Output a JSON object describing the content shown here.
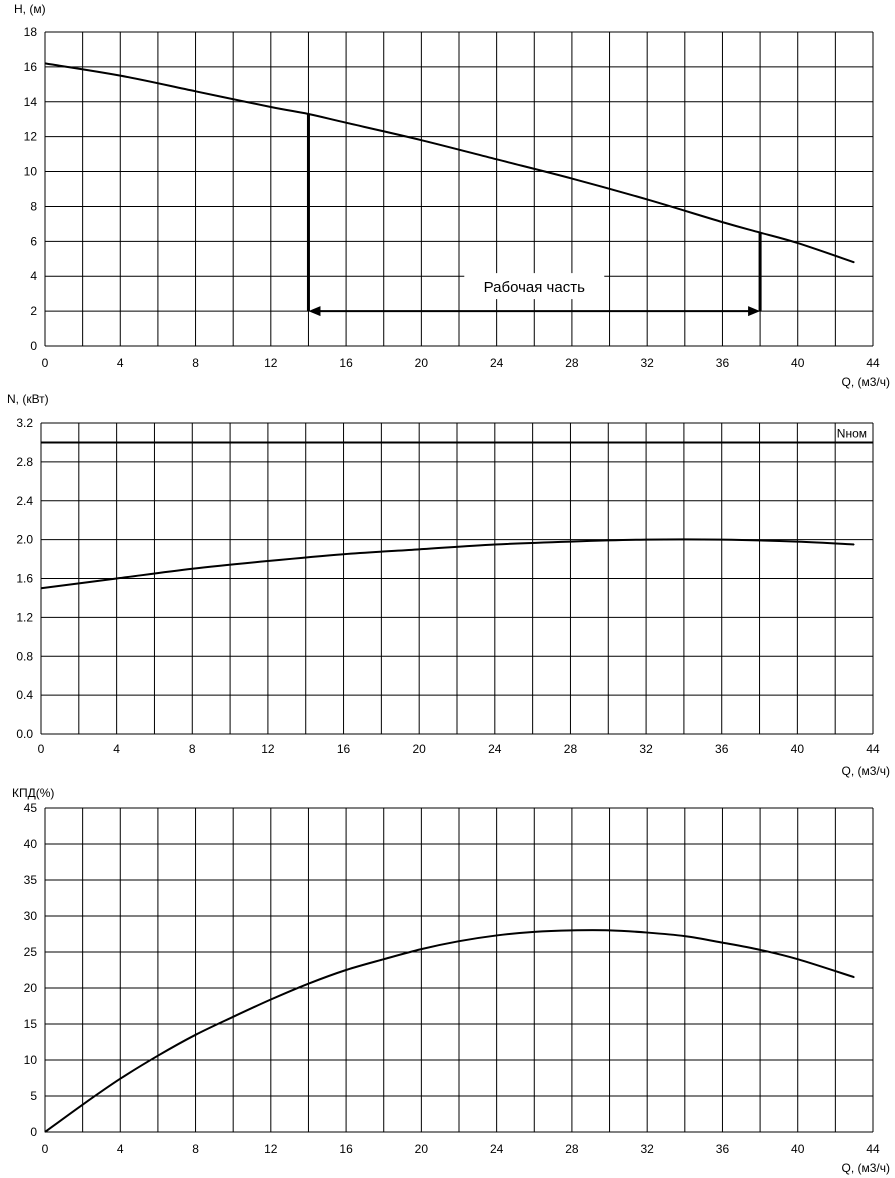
{
  "x_axis": {
    "label": "Q, (м3/ч)",
    "ticks": [
      0,
      4,
      8,
      12,
      16,
      20,
      24,
      28,
      32,
      36,
      40,
      44
    ],
    "range": [
      0,
      44
    ],
    "grid_step": 2
  },
  "chart_data": [
    {
      "type": "line",
      "ylabel": "H, (м)",
      "xlabel": "Q, (м3/ч)",
      "ylim": [
        0,
        18
      ],
      "yticks": [
        "0",
        "2",
        "4",
        "6",
        "8",
        "10",
        "12",
        "14",
        "16",
        "18"
      ],
      "grid": true,
      "series": [
        {
          "x": [
            0,
            4,
            8,
            12,
            14,
            16,
            20,
            24,
            28,
            32,
            36,
            38,
            40,
            43
          ],
          "y": [
            16.2,
            15.5,
            14.6,
            13.7,
            13.3,
            12.8,
            11.8,
            10.7,
            9.6,
            8.4,
            7.1,
            6.5,
            5.9,
            4.8
          ]
        }
      ],
      "annotations": [
        {
          "text": "Рабочая часть",
          "x_from": 14,
          "x_to": 38,
          "y": 2
        }
      ]
    },
    {
      "type": "line",
      "ylabel": "N, (кВт)",
      "xlabel": "Q, (м3/ч)",
      "ylim": [
        0,
        3.2
      ],
      "yticks": [
        "0.0",
        "0.4",
        "0.8",
        "1.2",
        "1.6",
        "2.0",
        "2.4",
        "2.8",
        "3.2"
      ],
      "grid": true,
      "series": [
        {
          "x": [
            0,
            4,
            8,
            12,
            16,
            20,
            24,
            28,
            32,
            36,
            40,
            43
          ],
          "y": [
            1.5,
            1.6,
            1.7,
            1.78,
            1.85,
            1.9,
            1.95,
            1.98,
            2.0,
            2.0,
            1.98,
            1.95
          ]
        }
      ],
      "reference_line": {
        "label": "Nном",
        "y": 3.0
      }
    },
    {
      "type": "line",
      "ylabel": "КПД(%)",
      "xlabel": "Q, (м3/ч)",
      "ylim": [
        0,
        45
      ],
      "yticks": [
        "0",
        "5",
        "10",
        "15",
        "20",
        "25",
        "30",
        "35",
        "40",
        "45"
      ],
      "grid": true,
      "series": [
        {
          "x": [
            0,
            2,
            4,
            6,
            8,
            10,
            12,
            14,
            16,
            18,
            20,
            22,
            24,
            26,
            28,
            30,
            32,
            34,
            36,
            38,
            40,
            43
          ],
          "y": [
            0,
            3.8,
            7.4,
            10.6,
            13.5,
            16.0,
            18.4,
            20.6,
            22.5,
            24.0,
            25.4,
            26.5,
            27.3,
            27.8,
            28.0,
            28.0,
            27.7,
            27.2,
            26.3,
            25.3,
            24.0,
            21.5
          ]
        }
      ]
    }
  ]
}
